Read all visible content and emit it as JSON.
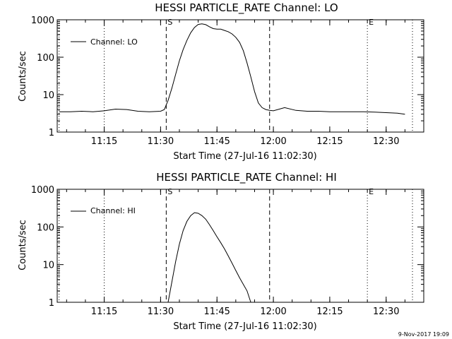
{
  "footer": {
    "timestamp": "9-Nov-2017 19:09"
  },
  "chart_data": [
    {
      "type": "line",
      "title": "HESSI PARTICLE_RATE Channel: LO",
      "xlabel": "Start Time (27-Jul-16 11:02:30)",
      "ylabel": "Counts/sec",
      "yscale": "log",
      "xlim": [
        "11:02:30",
        "12:40:00"
      ],
      "ylim": [
        1,
        1000
      ],
      "x_ticks": [
        "11:15",
        "11:30",
        "11:45",
        "12:00",
        "12:15",
        "12:30"
      ],
      "y_ticks": [
        "1",
        "10",
        "100",
        "1000"
      ],
      "legend": {
        "entries": [
          "Channel: LO"
        ],
        "placement": "top-left"
      },
      "vlines": [
        {
          "x": "11:03:00",
          "style": "dotted",
          "label": ""
        },
        {
          "x": "11:15:00",
          "style": "dotted",
          "label": ""
        },
        {
          "x": "11:31:30",
          "style": "dashed",
          "label": "S"
        },
        {
          "x": "11:59:00",
          "style": "dashed",
          "label": ""
        },
        {
          "x": "12:25:00",
          "style": "dotted",
          "label": "E"
        },
        {
          "x": "12:37:00",
          "style": "dotted",
          "label": ""
        }
      ],
      "series": [
        {
          "name": "Channel: LO",
          "x": [
            "11:03",
            "11:06",
            "11:09",
            "11:12",
            "11:15",
            "11:18",
            "11:21",
            "11:24",
            "11:27",
            "11:30",
            "11:31",
            "11:32",
            "11:33",
            "11:34",
            "11:35",
            "11:36",
            "11:37",
            "11:38",
            "11:39",
            "11:40",
            "11:41",
            "11:42",
            "11:43",
            "11:44",
            "11:45",
            "11:46",
            "11:47",
            "11:48",
            "11:49",
            "11:50",
            "11:51",
            "11:52",
            "11:53",
            "11:54",
            "11:55",
            "11:56",
            "11:57",
            "11:58",
            "11:59",
            "12:00",
            "12:03",
            "12:06",
            "12:09",
            "12:12",
            "12:15",
            "12:18",
            "12:21",
            "12:24",
            "12:27",
            "12:30",
            "12:33",
            "12:35"
          ],
          "y": [
            3.5,
            3.5,
            3.6,
            3.5,
            3.7,
            4.1,
            4.0,
            3.6,
            3.5,
            3.6,
            4,
            7,
            15,
            35,
            80,
            160,
            280,
            450,
            620,
            750,
            780,
            740,
            650,
            580,
            560,
            560,
            520,
            480,
            420,
            340,
            250,
            150,
            70,
            30,
            12,
            6,
            4.5,
            4,
            3.8,
            3.7,
            4.5,
            3.8,
            3.6,
            3.6,
            3.5,
            3.5,
            3.5,
            3.5,
            3.4,
            3.3,
            3.2,
            3.0
          ]
        }
      ]
    },
    {
      "type": "line",
      "title": "HESSI PARTICLE_RATE Channel: HI",
      "xlabel": "Start Time (27-Jul-16 11:02:30)",
      "ylabel": "Counts/sec",
      "yscale": "log",
      "xlim": [
        "11:02:30",
        "12:40:00"
      ],
      "ylim": [
        1,
        1000
      ],
      "x_ticks": [
        "11:15",
        "11:30",
        "11:45",
        "12:00",
        "12:15",
        "12:30"
      ],
      "y_ticks": [
        "1",
        "10",
        "100",
        "1000"
      ],
      "legend": {
        "entries": [
          "Channel: HI"
        ],
        "placement": "top-left"
      },
      "vlines": [
        {
          "x": "11:03:00",
          "style": "dotted",
          "label": ""
        },
        {
          "x": "11:15:00",
          "style": "dotted",
          "label": ""
        },
        {
          "x": "11:31:30",
          "style": "dashed",
          "label": "S"
        },
        {
          "x": "11:59:00",
          "style": "dashed",
          "label": ""
        },
        {
          "x": "12:25:00",
          "style": "dotted",
          "label": "E"
        },
        {
          "x": "12:37:00",
          "style": "dotted",
          "label": ""
        }
      ],
      "series": [
        {
          "name": "Channel: HI",
          "x": [
            "11:32",
            "11:33",
            "11:34",
            "11:35",
            "11:36",
            "11:37",
            "11:38",
            "11:39",
            "11:40",
            "11:41",
            "11:42",
            "11:43",
            "11:44",
            "11:45",
            "11:46",
            "11:47",
            "11:48",
            "11:49",
            "11:50",
            "11:51",
            "11:52",
            "11:53",
            "11:54"
          ],
          "y": [
            1.0,
            3.5,
            12,
            35,
            80,
            140,
            200,
            240,
            230,
            200,
            160,
            115,
            80,
            55,
            38,
            26,
            17,
            11,
            7,
            4.5,
            3,
            2,
            1.0
          ]
        }
      ]
    }
  ]
}
